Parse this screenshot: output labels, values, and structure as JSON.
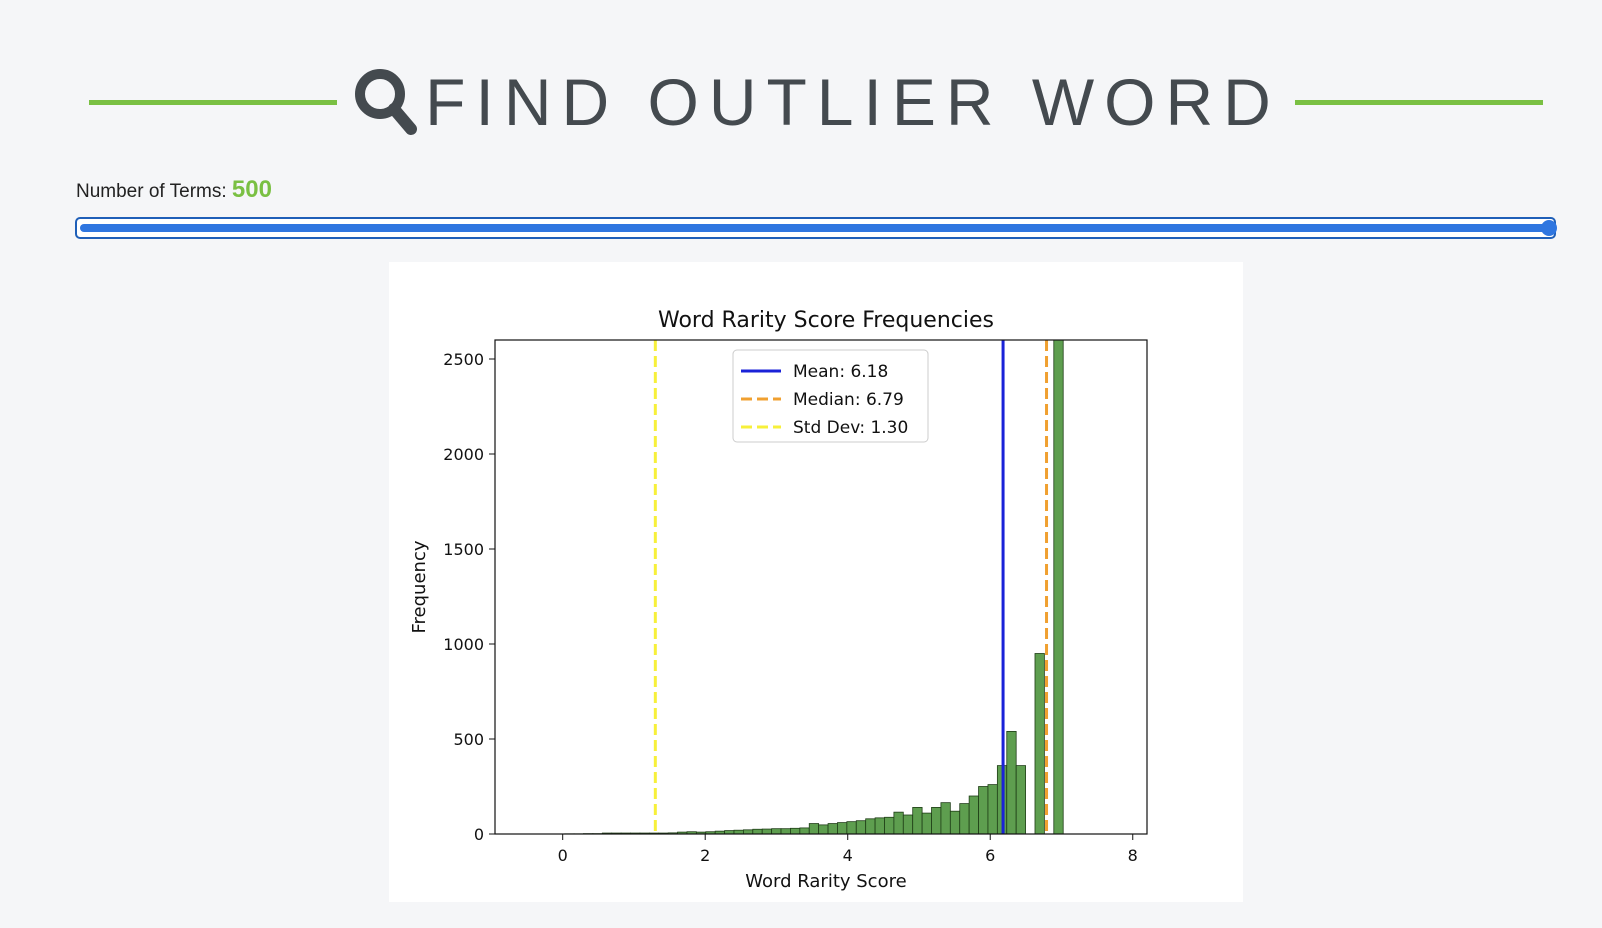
{
  "header": {
    "title": "FIND OUTLIER WORD",
    "icon": "search-icon",
    "accent_color": "#7ac043",
    "text_color": "#444a4f"
  },
  "terms": {
    "label": "Number of Terms:",
    "value": "500",
    "slider_fraction": 1.0,
    "slider_color": "#2f76e0"
  },
  "chart_data": {
    "type": "bar",
    "title": "Word Rarity Score Frequencies",
    "xlabel": "Word Rarity Score",
    "ylabel": "Frequency",
    "xlim": [
      -0.95,
      8.2
    ],
    "ylim": [
      0,
      2600
    ],
    "xticks": [
      0,
      2,
      4,
      6,
      8
    ],
    "yticks": [
      0,
      500,
      1000,
      1500,
      2000,
      2500
    ],
    "bar_color": "#5e9e4f",
    "bar_edge": "#1e3d16",
    "bin_width": 0.132,
    "bin_starts": [
      -0.5,
      -0.368,
      -0.236,
      -0.104,
      0.028,
      0.16,
      0.292,
      0.424,
      0.556,
      0.688,
      0.82,
      0.952,
      1.084,
      1.216,
      1.348,
      1.48,
      1.612,
      1.744,
      1.876,
      2.008,
      2.14,
      2.272,
      2.404,
      2.536,
      2.668,
      2.8,
      2.932,
      3.064,
      3.196,
      3.328,
      3.46,
      3.592,
      3.724,
      3.856,
      3.988,
      4.12,
      4.252,
      4.384,
      4.516,
      4.648,
      4.78,
      4.912,
      5.044,
      5.176,
      5.308,
      5.44,
      5.572,
      5.704,
      5.836,
      5.968,
      6.1,
      6.232,
      6.364,
      6.496,
      6.628,
      6.76,
      6.892,
      7.024
    ],
    "values": [
      0,
      0,
      0,
      0,
      1,
      1,
      2,
      2,
      5,
      5,
      5,
      5,
      5,
      5,
      5,
      6,
      10,
      12,
      10,
      12,
      15,
      18,
      20,
      22,
      25,
      26,
      28,
      28,
      30,
      32,
      55,
      48,
      55,
      60,
      65,
      70,
      80,
      85,
      88,
      115,
      100,
      140,
      110,
      140,
      165,
      120,
      160,
      200,
      250,
      260,
      360,
      540,
      360,
      0,
      950,
      0,
      2600,
      0
    ],
    "lines": [
      {
        "label": "Mean: 6.18",
        "x": 6.18,
        "color": "#1a22d8",
        "style": "solid"
      },
      {
        "label": "Median: 6.79",
        "x": 6.79,
        "color": "#f0a030",
        "style": "dashed"
      },
      {
        "label": "Std Dev: 1.30",
        "x": 1.3,
        "color": "#f7f03a",
        "style": "dashed"
      }
    ],
    "legend_position": "top-center",
    "grid": false
  }
}
